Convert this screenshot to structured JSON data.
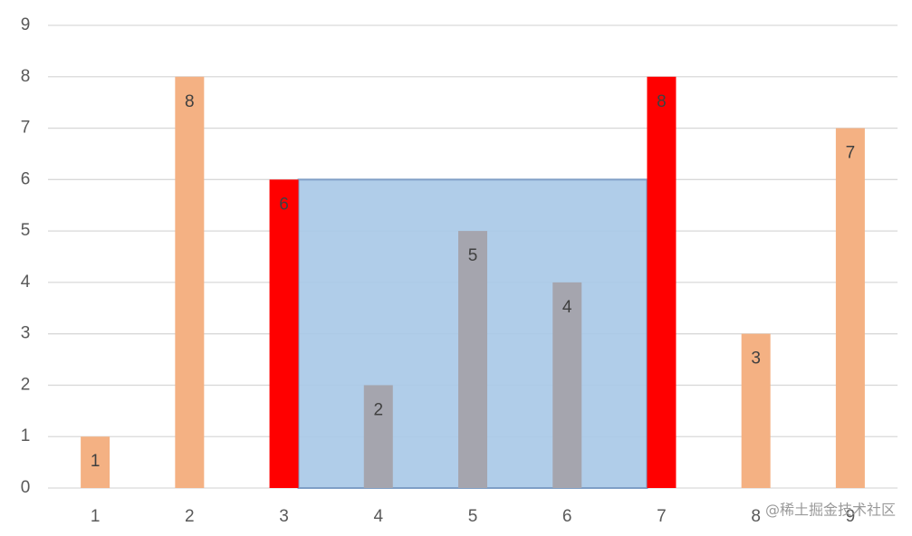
{
  "chart_data": {
    "type": "bar",
    "categories": [
      "1",
      "2",
      "3",
      "4",
      "5",
      "6",
      "7",
      "8",
      "9"
    ],
    "values": [
      1,
      8,
      6,
      2,
      5,
      4,
      8,
      3,
      7
    ],
    "colors": [
      "#f4b183",
      "#f4b183",
      "#ff0000",
      "#a5a5ae",
      "#a5a5ae",
      "#a5a5ae",
      "#ff0000",
      "#f4b183",
      "#f4b183"
    ],
    "ylim": [
      0,
      9
    ],
    "yticks": [
      0,
      1,
      2,
      3,
      4,
      5,
      6,
      7,
      8,
      9
    ],
    "grid": true,
    "highlight": {
      "between": [
        "3",
        "7"
      ],
      "value": 6,
      "color": "#a9c9e7"
    },
    "watermark": "@稀土掘金技术社区"
  }
}
